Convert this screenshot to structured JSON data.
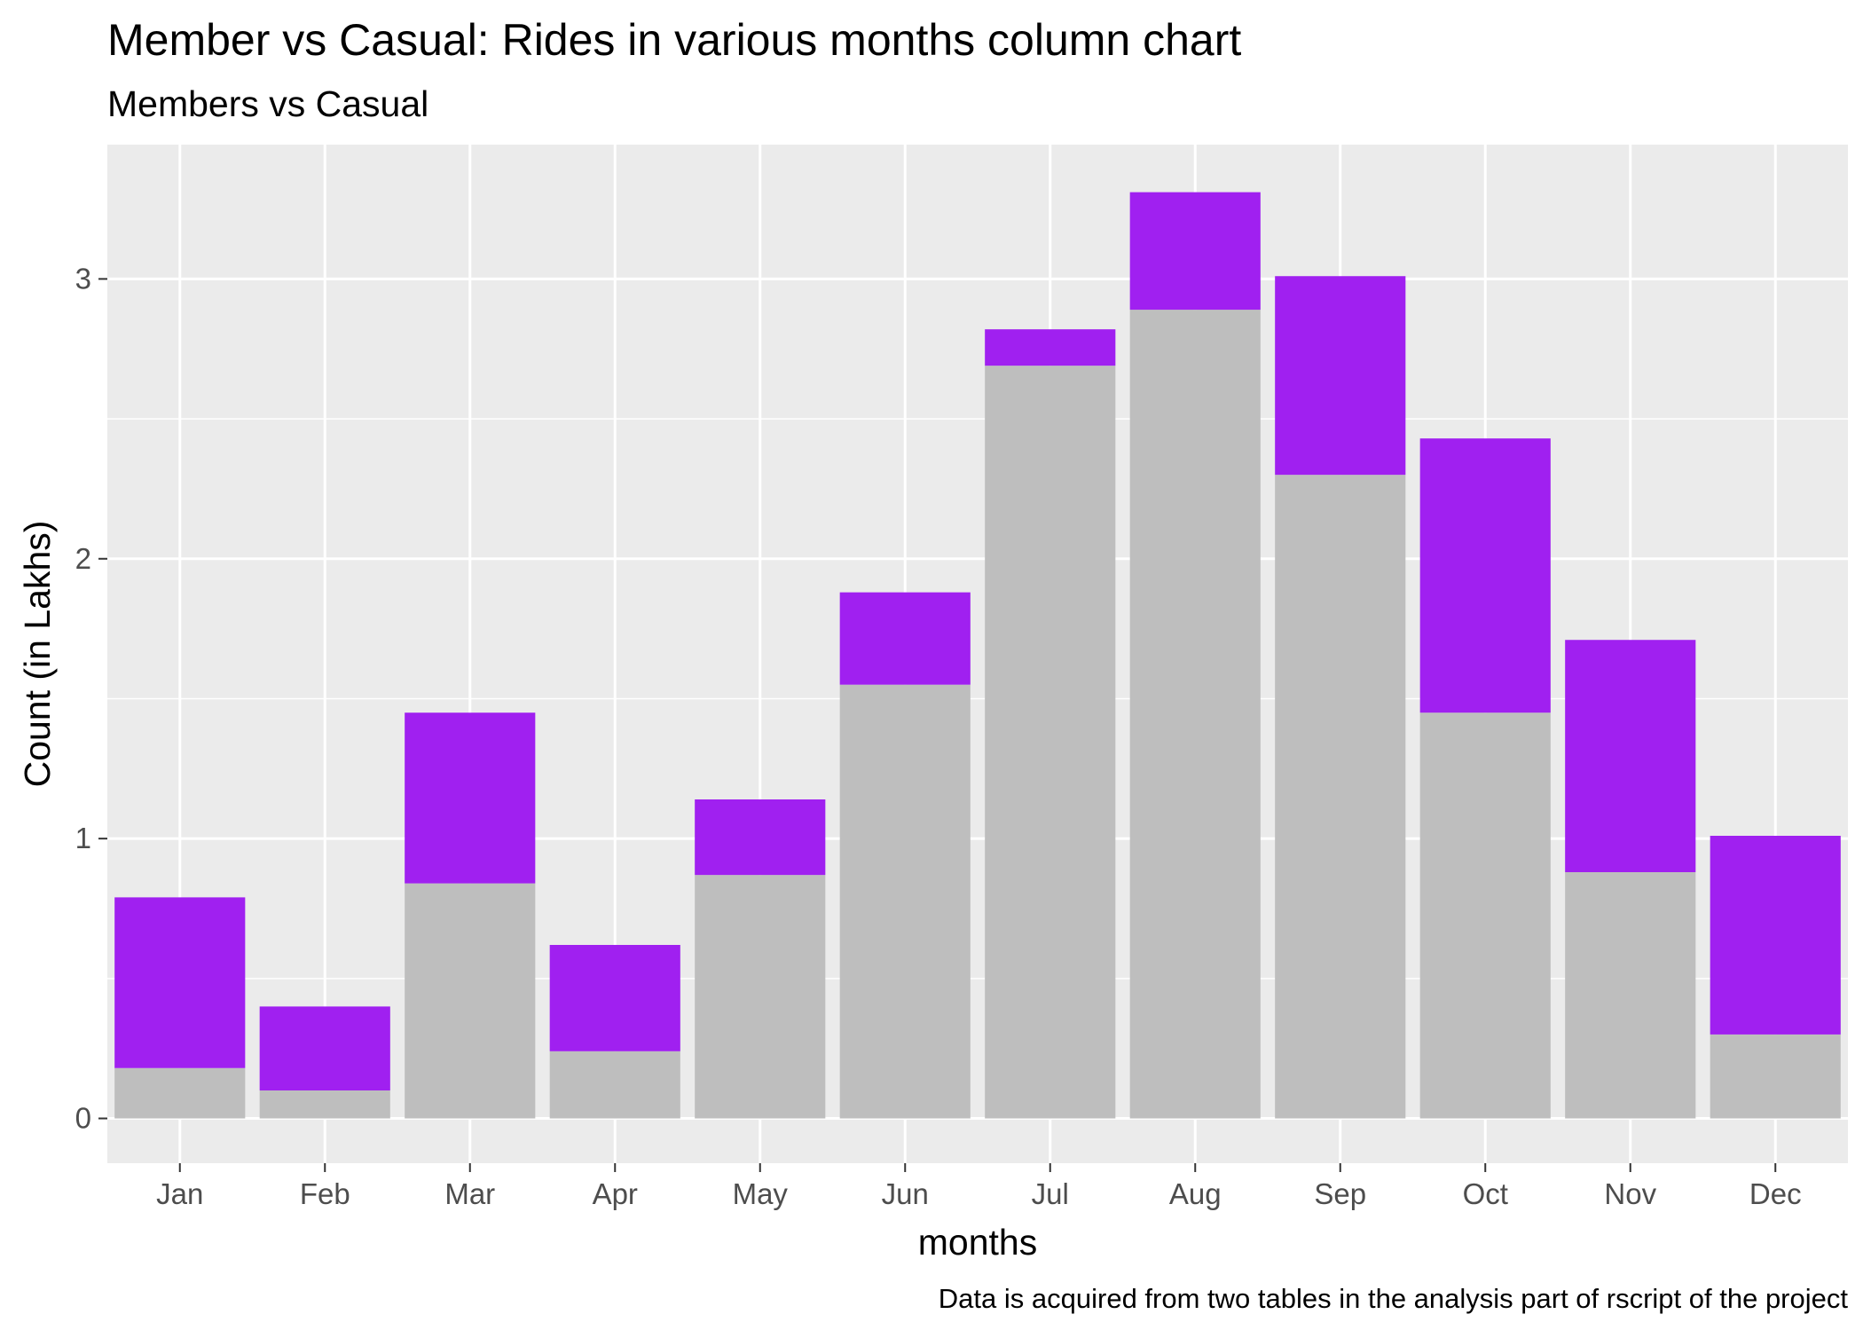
{
  "chart_data": {
    "type": "bar",
    "stacked": true,
    "title": "Member vs Casual: Rides in various months column chart",
    "subtitle": "Members vs Casual",
    "xlabel": "months",
    "ylabel": "Count (in Lakhs)",
    "caption": "Data is acquired from two tables in the analysis part of rscript of the project",
    "categories": [
      "Jan",
      "Feb",
      "Mar",
      "Apr",
      "May",
      "Jun",
      "Jul",
      "Aug",
      "Sep",
      "Oct",
      "Nov",
      "Dec"
    ],
    "series": [
      {
        "color": "#bebebe",
        "values": [
          0.18,
          0.1,
          0.84,
          0.24,
          0.87,
          1.55,
          2.69,
          2.89,
          2.3,
          1.45,
          0.88,
          0.3
        ]
      },
      {
        "color": "#a020f0",
        "values": [
          0.61,
          0.3,
          0.61,
          0.38,
          0.27,
          0.33,
          0.13,
          0.42,
          0.71,
          0.98,
          0.83,
          0.71
        ]
      }
    ],
    "yticks": [
      0,
      1,
      2,
      3
    ],
    "ytick_labels": [
      "0",
      "1",
      "2",
      "3"
    ],
    "ylim": [
      -0.16,
      3.48
    ],
    "grid": true,
    "legend": "none",
    "panel_color": "#ebebeb",
    "grid_color": "#ffffff"
  }
}
